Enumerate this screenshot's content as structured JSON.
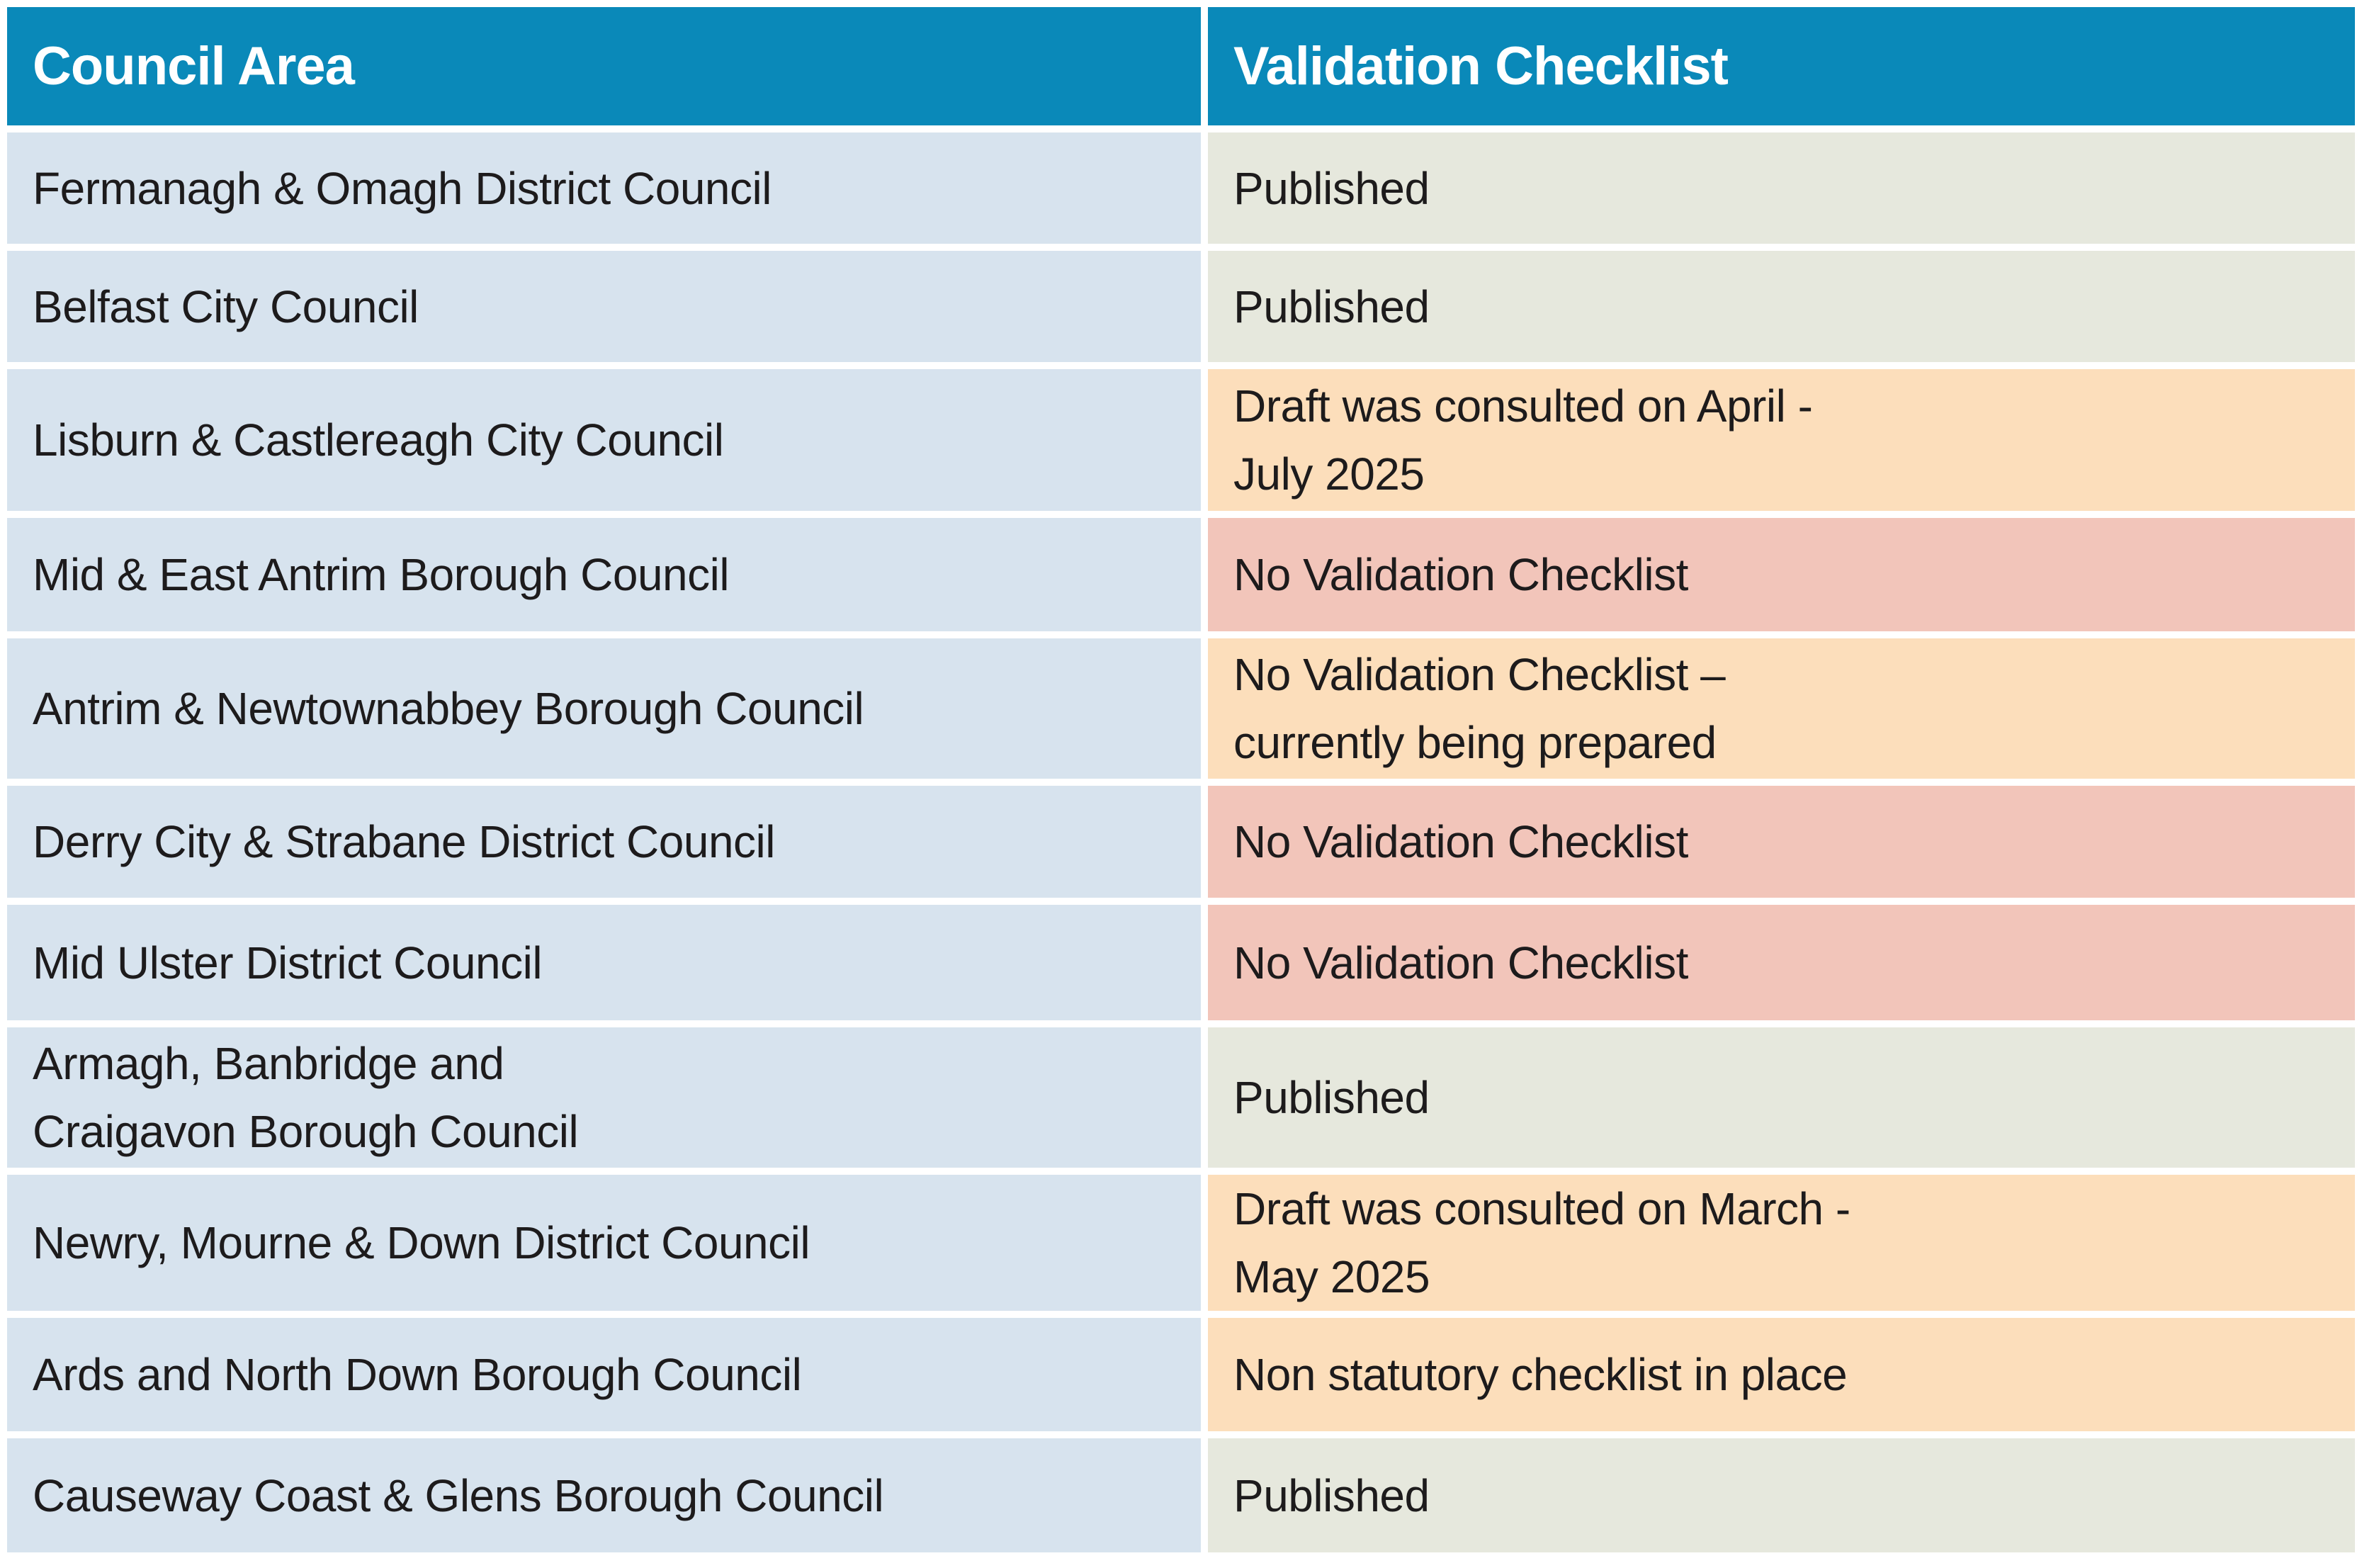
{
  "table": {
    "headers": [
      {
        "label": "Council Area"
      },
      {
        "label": "Validation Checklist"
      }
    ],
    "rows": [
      {
        "council": "Fermanagh & Omagh District Council",
        "status": "Published",
        "status_type": "published"
      },
      {
        "council": "Belfast City Council",
        "status": "Published",
        "status_type": "published"
      },
      {
        "council": "Lisburn & Castlereagh City Council",
        "status": "Draft was consulted on April -\nJuly 2025",
        "status_type": "draft"
      },
      {
        "council": "Mid & East Antrim Borough Council",
        "status": "No Validation Checklist",
        "status_type": "none"
      },
      {
        "council": "Antrim & Newtownabbey Borough Council",
        "status": "No Validation Checklist –\ncurrently being prepared",
        "status_type": "draft"
      },
      {
        "council": "Derry City & Strabane District Council",
        "status": "No Validation Checklist",
        "status_type": "none"
      },
      {
        "council": "Mid Ulster District Council",
        "status": "No Validation Checklist",
        "status_type": "none"
      },
      {
        "council": "Armagh, Banbridge and\nCraigavon Borough Council",
        "status": "Published",
        "status_type": "published"
      },
      {
        "council": "Newry, Mourne & Down District Council",
        "status": "Draft was consulted on March -\nMay 2025",
        "status_type": "draft"
      },
      {
        "council": "Ards and North Down Borough Council",
        "status": "Non statutory checklist in place",
        "status_type": "draft"
      },
      {
        "council": "Causeway Coast & Glens Borough Council",
        "status": "Published",
        "status_type": "published"
      }
    ],
    "colors": {
      "header_bg": "#0a89b9",
      "header_text": "#ffffff",
      "council_bg": "#d7e3ee",
      "published_bg": "#e6e8dd",
      "draft_bg": "#fcdebb",
      "no_checklist_bg": "#f2c5ba",
      "body_text": "#1d1b1c"
    }
  }
}
